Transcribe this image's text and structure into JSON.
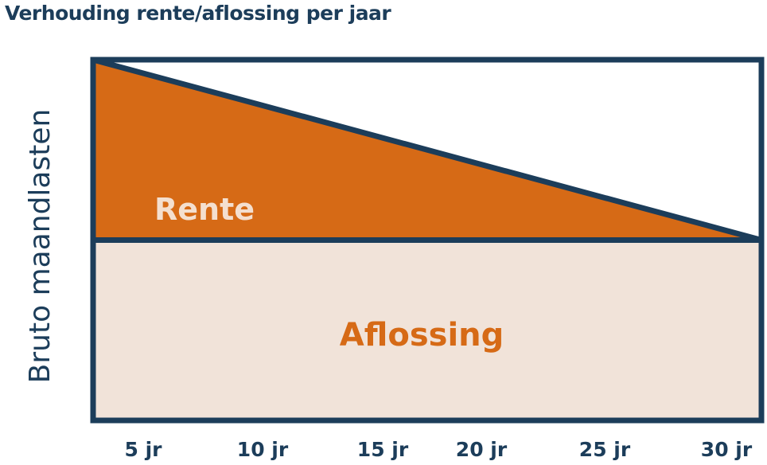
{
  "chart_data": {
    "type": "area",
    "title": "Verhouding rente/aflossing per jaar",
    "ylabel": "Bruto maandlasten",
    "xlabel": "",
    "x_ticks": [
      "5 jr",
      "10 jr",
      "15 jr",
      "20 jr",
      "25 jr",
      "30 jr"
    ],
    "xlim": [
      0,
      30
    ],
    "ylim": [
      0,
      1
    ],
    "grid": false,
    "series": [
      {
        "name": "Aflossing",
        "x": [
          0,
          30
        ],
        "y": [
          0.5,
          0.5
        ],
        "color": "#f1e3d9"
      },
      {
        "name": "Rente",
        "x": [
          0,
          30
        ],
        "y": [
          0.5,
          0
        ],
        "color": "#d66a16"
      }
    ]
  },
  "colors": {
    "border": "#1c3d5a",
    "rente": "#d66a16",
    "aflossing": "#f1e3d9",
    "rente_label": "#f4dfcf",
    "aflossing_label": "#d66a16"
  }
}
